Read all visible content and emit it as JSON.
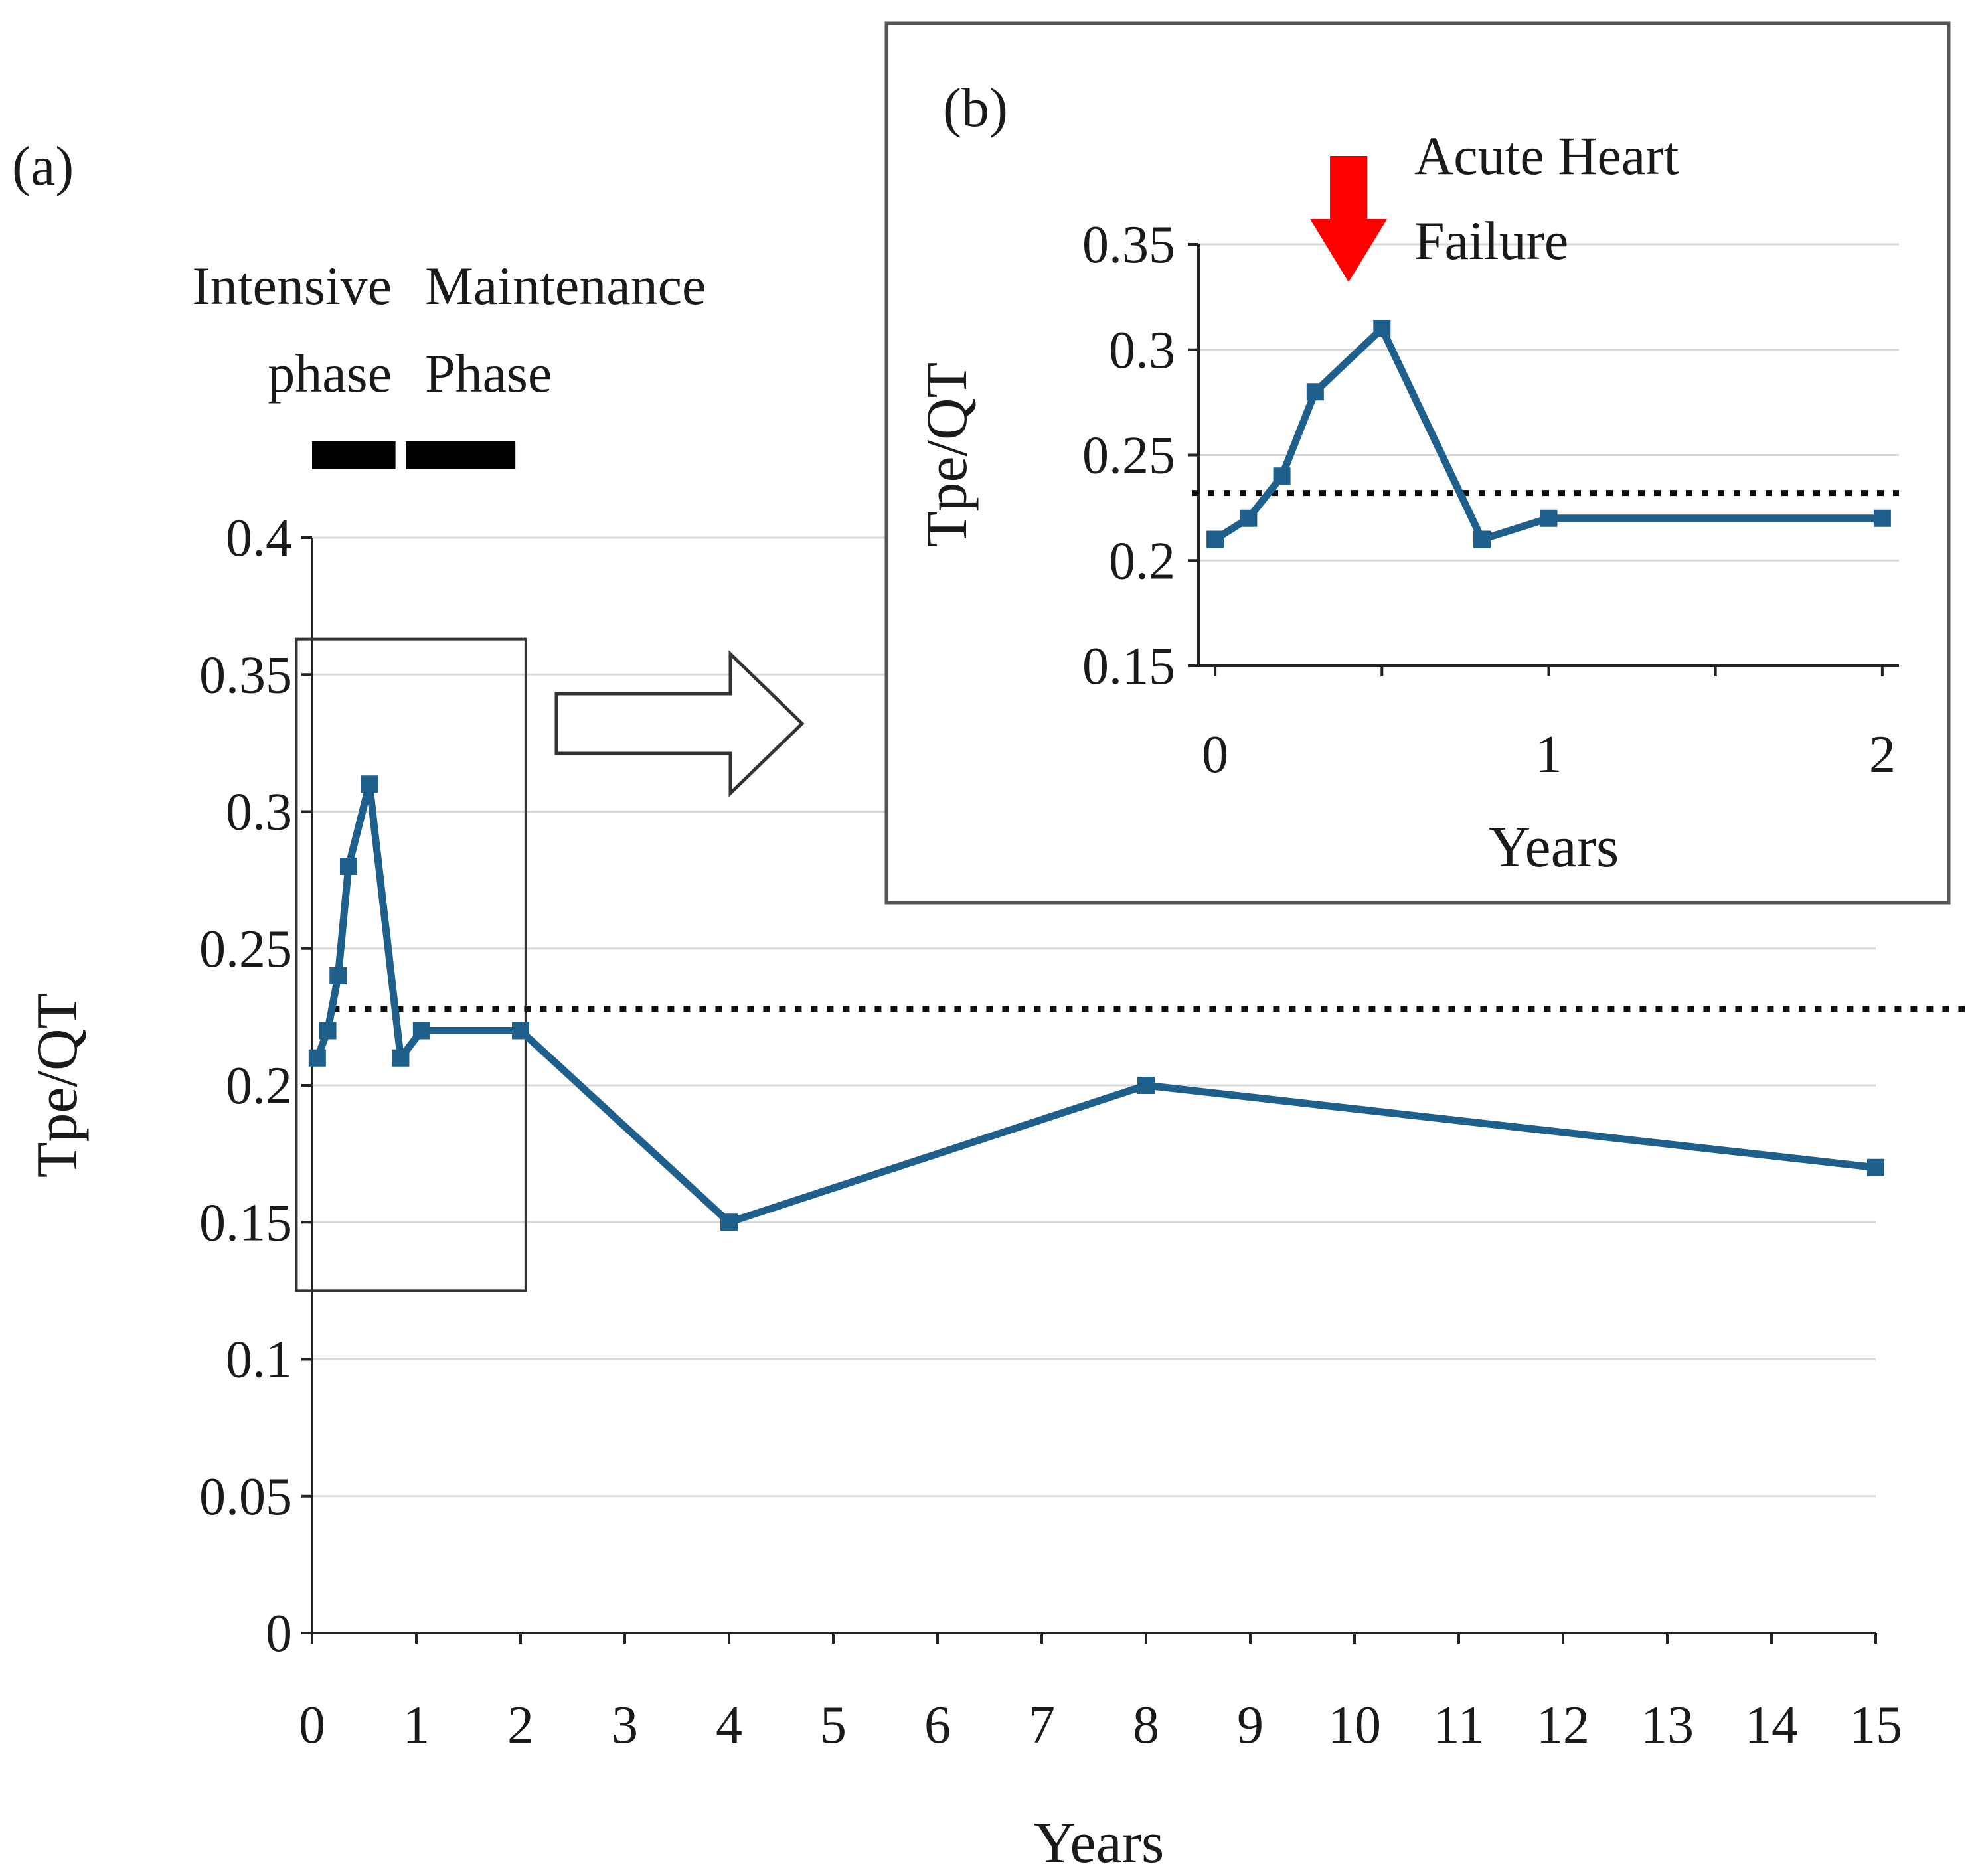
{
  "chart_data": [
    {
      "panel": "main",
      "panel_label": "(a)",
      "type": "line",
      "xlabel": "Years",
      "ylabel": "Tpe/QT",
      "xlim": [
        0,
        15
      ],
      "ylim": [
        0,
        0.4
      ],
      "x_ticks": [
        0,
        1,
        2,
        3,
        4,
        5,
        6,
        7,
        8,
        9,
        10,
        11,
        12,
        13,
        14,
        15
      ],
      "y_ticks": [
        0,
        0.05,
        0.1,
        0.15,
        0.2,
        0.25,
        0.3,
        0.35,
        0.4
      ],
      "x_tick_labels": [
        "0",
        "1",
        "2",
        "3",
        "4",
        "5",
        "6",
        "7",
        "8",
        "9",
        "10",
        "11",
        "12",
        "13",
        "14",
        "15"
      ],
      "y_tick_labels": [
        "0",
        "0.05",
        "0.1",
        "0.15",
        "0.2",
        "0.25",
        "0.3",
        "0.35",
        "0.4"
      ],
      "grid": "horizontal",
      "series": [
        {
          "name": "Tpe/QT",
          "color": "#1f5f8b",
          "x": [
            0.05,
            0.15,
            0.25,
            0.35,
            0.55,
            0.85,
            1.05,
            2.0,
            4.0,
            8.0,
            15.0
          ],
          "y": [
            0.21,
            0.22,
            0.24,
            0.28,
            0.31,
            0.21,
            0.22,
            0.22,
            0.15,
            0.2,
            0.17
          ]
        }
      ],
      "threshold": {
        "y": 0.228,
        "style": "dotted",
        "color": "#111111"
      },
      "phases": [
        {
          "label_line1": "Intensive",
          "label_line2": "phase",
          "x_start": 0.0,
          "x_end": 0.8
        },
        {
          "label_line1": "Maintenance",
          "label_line2": "Phase",
          "x_start": 0.9,
          "x_end": 1.95
        }
      ],
      "zoom_region": {
        "x_start": -0.15,
        "x_end": 2.05,
        "y_start": 0.125,
        "y_end": 0.363
      }
    },
    {
      "panel": "inset",
      "panel_label": "(b)",
      "type": "line",
      "xlabel": "Years",
      "ylabel": "Tpe/QT",
      "xlim": [
        -0.05,
        2.05
      ],
      "ylim": [
        0.15,
        0.35
      ],
      "x_ticks": [
        0,
        1,
        2
      ],
      "y_ticks": [
        0.15,
        0.2,
        0.25,
        0.3,
        0.35
      ],
      "x_tick_labels": [
        "0",
        "1",
        "2"
      ],
      "y_tick_labels": [
        "0.15",
        "0.2",
        "0.25",
        "0.3",
        "0.35"
      ],
      "grid": "horizontal",
      "series": [
        {
          "name": "Tpe/QT",
          "color": "#1f5f8b",
          "x": [
            0.0,
            0.1,
            0.2,
            0.3,
            0.5,
            0.8,
            1.0,
            2.0
          ],
          "y": [
            0.21,
            0.22,
            0.24,
            0.28,
            0.31,
            0.21,
            0.22,
            0.22
          ]
        }
      ],
      "threshold": {
        "y": 0.232,
        "style": "dotted",
        "color": "#111111"
      },
      "annotation": {
        "text_line1": "Acute Heart",
        "text_line2": "Failure",
        "x": 0.4,
        "arrow_color": "#ff0000"
      }
    }
  ]
}
